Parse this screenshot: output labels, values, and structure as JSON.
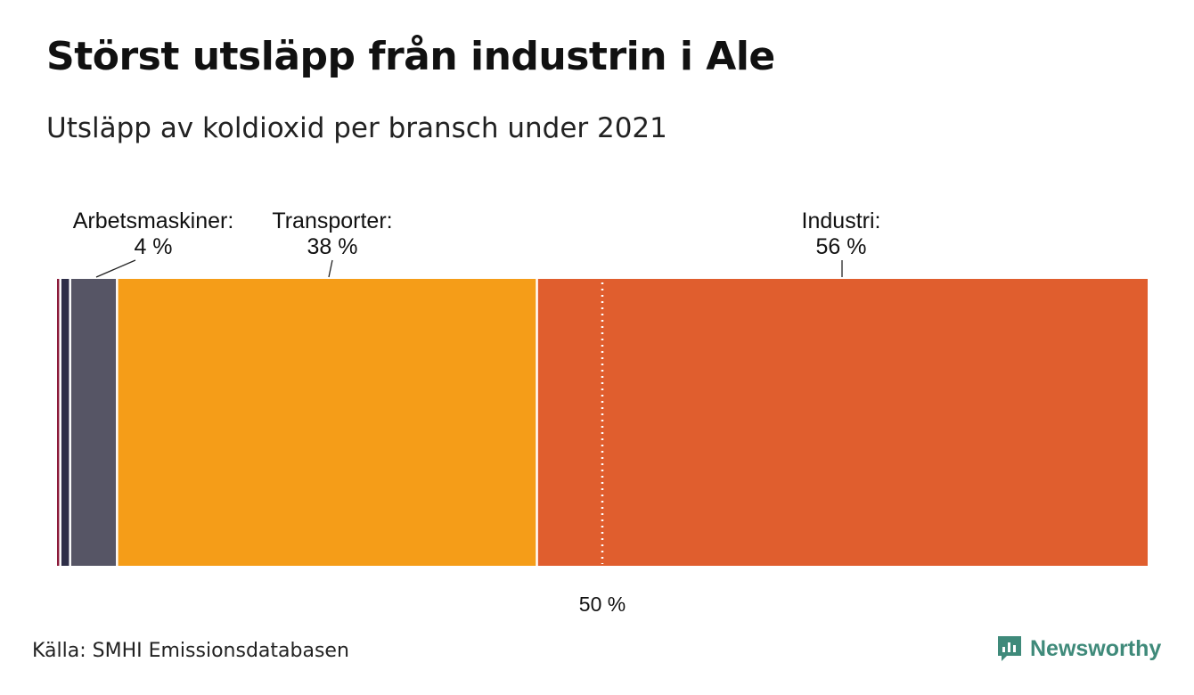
{
  "header": {
    "title": "Störst utsläpp från industrin i Ale",
    "subtitle": "Utsläpp av koldioxid per bransch under 2021"
  },
  "footer": {
    "source": "Källa: SMHI Emissionsdatabasen",
    "brand": "Newsworthy",
    "brand_icon": "newsworthy-logo-icon"
  },
  "chart_data": {
    "type": "bar",
    "orientation": "horizontal-stacked-100",
    "unit": "%",
    "series": [
      {
        "name": "",
        "value": 0.3,
        "color": "#8b1a3a"
      },
      {
        "name": "",
        "value": 0.9,
        "color": "#2e2e48"
      },
      {
        "name": "Arbetsmaskiner:",
        "value": 4.3,
        "label": "4 %",
        "color": "#565565"
      },
      {
        "name": "Transporter:",
        "value": 38.5,
        "label": "38 %",
        "color": "#f59d18"
      },
      {
        "name": "Industri:",
        "value": 56.0,
        "label": "56 %",
        "color": "#e05e2e"
      }
    ],
    "reference_line": {
      "value": 50,
      "label": "50 %",
      "style": "dotted",
      "color": "#ffffff"
    },
    "xlim": [
      0,
      100
    ],
    "grid": false,
    "legend": "none"
  }
}
